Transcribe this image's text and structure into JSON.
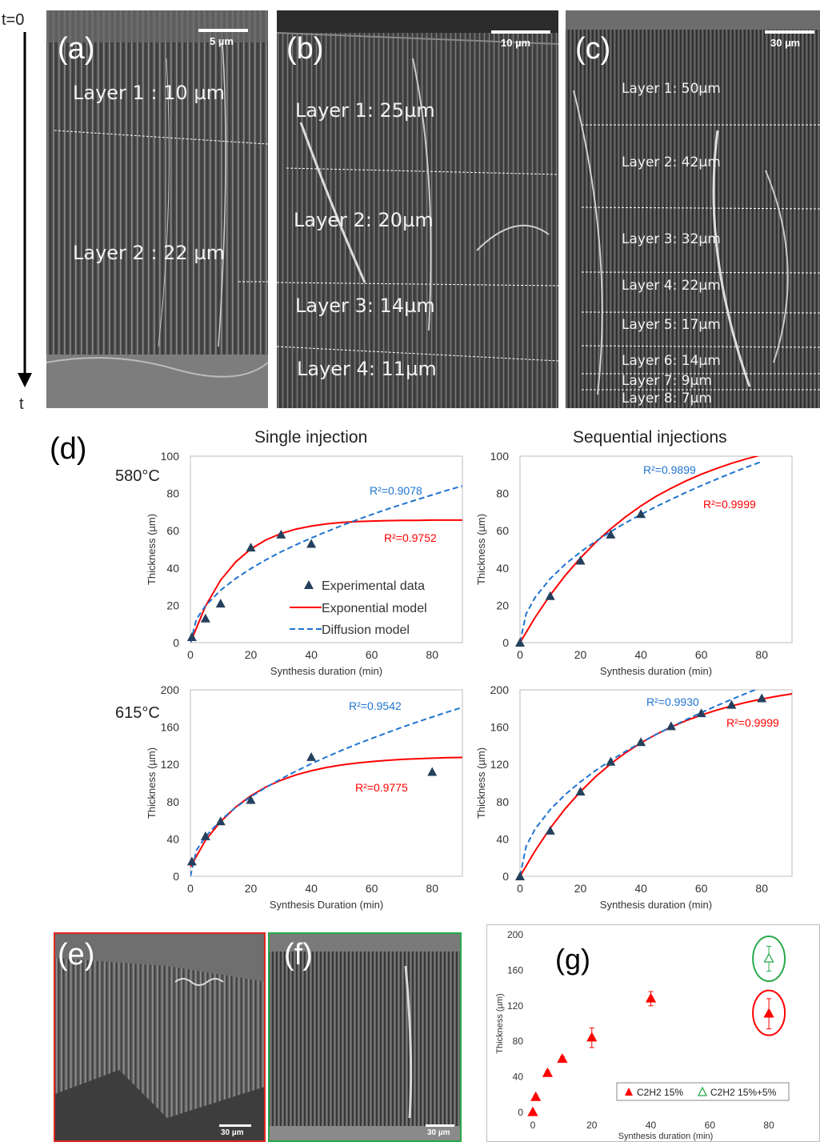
{
  "timeline": {
    "start_label": "t=0",
    "end_label": "t"
  },
  "sem_panels": [
    {
      "letter": "(a)",
      "scale": "5 µm",
      "layers": [
        "Layer 1 : 10 µm",
        "Layer 2 : 22 µm"
      ]
    },
    {
      "letter": "(b)",
      "scale": "10 µm",
      "layers": [
        "Layer 1: 25µm",
        "Layer 2: 20µm",
        "Layer 3: 14µm",
        "Layer 4: 11µm"
      ]
    },
    {
      "letter": "(c)",
      "scale": "30 µm",
      "layers": [
        "Layer 1: 50µm",
        "Layer 2: 42µm",
        "Layer 3: 32µm",
        "Layer 4: 22µm",
        "Layer 5: 17µm",
        "Layer 6: 14µm",
        "Layer 7: 9µm",
        "Layer 8: 7µm"
      ]
    }
  ],
  "panel_d": {
    "letter": "(d)",
    "col_titles": [
      "Single injection",
      "Sequential injections"
    ],
    "row_labels": [
      "580°C",
      "615°C"
    ]
  },
  "legend": {
    "experimental": "Experimental data",
    "exponential": "Exponential model",
    "diffusion": "Diffusion model"
  },
  "colors": {
    "experimental": "#24405c",
    "exponential": "#ff0000",
    "diffusion": "#1f74d0",
    "red_frame": "#e0261f",
    "green_frame": "#28a94a"
  },
  "bottom_panels": {
    "e": {
      "letter": "(e)",
      "scale": "30 µm"
    },
    "f": {
      "letter": "(f)",
      "scale": "30 µm"
    }
  },
  "chart_data": [
    {
      "id": "d-580-single",
      "type": "scatter",
      "xlabel": "Synthesis duration (min)",
      "ylabel": "Thickness (µm)",
      "xlim": [
        0,
        90
      ],
      "ylim": [
        0,
        100
      ],
      "xticks": [
        "0",
        "20",
        "40",
        "60",
        "80"
      ],
      "yticks": [
        "0",
        "20",
        "40",
        "60",
        "80",
        "100"
      ],
      "series": [
        {
          "name": "Experimental data",
          "kind": "points",
          "x": [
            0.5,
            5,
            10,
            20,
            30,
            40
          ],
          "y": [
            3,
            13,
            21,
            51,
            58,
            53
          ]
        },
        {
          "name": "Exponential model",
          "kind": "line",
          "r2": "R²=0.9752",
          "x": [
            0,
            5,
            10,
            15,
            20,
            25,
            30,
            35,
            40,
            45,
            50,
            55,
            60,
            65,
            70,
            75,
            80,
            85,
            90
          ],
          "y": [
            0,
            19.6,
            33.5,
            43.3,
            50.2,
            55.1,
            58.5,
            60.9,
            62.5,
            63.7,
            64.4,
            64.9,
            65.2,
            65.4,
            65.6,
            65.6,
            65.7,
            65.7,
            65.7
          ]
        },
        {
          "name": "Diffusion model",
          "kind": "line",
          "r2": "R²=0.9078",
          "x": [
            0,
            2,
            5,
            10,
            15,
            20,
            25,
            30,
            35,
            40,
            45,
            50,
            55,
            60,
            65,
            70,
            75,
            80,
            85,
            90
          ],
          "y": [
            0,
            12.6,
            19.8,
            28.1,
            34.4,
            39.7,
            44.4,
            48.7,
            52.5,
            56.1,
            59.5,
            62.7,
            65.8,
            68.7,
            71.5,
            74.1,
            76.7,
            79.2,
            81.7,
            84
          ]
        }
      ]
    },
    {
      "id": "d-580-sequential",
      "type": "scatter",
      "xlabel": "Synthesis duration (min)",
      "ylabel": "Thickness (µm)",
      "xlim": [
        0,
        90
      ],
      "ylim": [
        0,
        100
      ],
      "xticks": [
        "0",
        "20",
        "40",
        "60",
        "80"
      ],
      "yticks": [
        "0",
        "20",
        "40",
        "60",
        "80",
        "100"
      ],
      "series": [
        {
          "name": "Experimental data",
          "kind": "points",
          "x": [
            0,
            10,
            20,
            30,
            40
          ],
          "y": [
            0,
            25,
            44,
            58,
            69
          ]
        },
        {
          "name": "Exponential model",
          "kind": "line",
          "r2": "R²=0.9999",
          "x": [
            0,
            5,
            10,
            15,
            20,
            25,
            30,
            35,
            40,
            45,
            50,
            55,
            60,
            65,
            70,
            75,
            80
          ],
          "y": [
            0,
            13.5,
            25.5,
            36.1,
            45.4,
            53.7,
            61,
            67.5,
            73.3,
            78.4,
            82.8,
            86.8,
            90.3,
            93.4,
            96.2,
            98.6,
            100.7
          ]
        },
        {
          "name": "Diffusion model",
          "kind": "line",
          "r2": "R²=0.9899",
          "x": [
            0,
            2,
            5,
            10,
            15,
            20,
            25,
            30,
            35,
            40,
            45,
            50,
            55,
            60,
            65,
            70,
            75,
            80
          ],
          "y": [
            0,
            15.4,
            24.3,
            34.3,
            42.1,
            48.6,
            54.3,
            59.5,
            64.3,
            68.7,
            72.9,
            76.8,
            80.6,
            84.2,
            87.6,
            90.9,
            94.1,
            97.1
          ]
        }
      ]
    },
    {
      "id": "d-615-single",
      "type": "scatter",
      "xlabel": "Synthesis Duration (min)",
      "ylabel": "Thickness (µm)",
      "xlim": [
        0,
        90
      ],
      "ylim": [
        0,
        200
      ],
      "xticks": [
        "0",
        "20",
        "40",
        "60",
        "80"
      ],
      "yticks": [
        "0",
        "40",
        "80",
        "120",
        "160",
        "200"
      ],
      "series": [
        {
          "name": "Experimental data",
          "kind": "points",
          "x": [
            0.5,
            5,
            10,
            20,
            40,
            80
          ],
          "y": [
            16,
            43,
            59,
            82,
            128,
            112
          ]
        },
        {
          "name": "Exponential model",
          "kind": "line",
          "r2": "R²=0.9775",
          "x": [
            0,
            5,
            10,
            15,
            20,
            25,
            30,
            35,
            40,
            45,
            50,
            55,
            60,
            65,
            70,
            75,
            80,
            85,
            90
          ],
          "y": [
            10,
            38.7,
            58.7,
            74.3,
            86.4,
            95.8,
            103.1,
            108.8,
            113.2,
            116.7,
            119.4,
            121.5,
            123.1,
            124.4,
            125.4,
            126.1,
            126.7,
            127.2,
            127.5
          ]
        },
        {
          "name": "Diffusion model",
          "kind": "line",
          "r2": "R²=0.9542",
          "x": [
            0,
            2,
            5,
            10,
            15,
            20,
            25,
            30,
            35,
            40,
            45,
            50,
            55,
            60,
            65,
            70,
            75,
            80,
            85,
            90
          ],
          "y": [
            0,
            28,
            42.6,
            60.3,
            73.9,
            85.3,
            95.4,
            104.5,
            112.9,
            120.7,
            128,
            135,
            141.6,
            147.9,
            153.9,
            159.8,
            165.4,
            170.8,
            176.1,
            181.2
          ]
        }
      ]
    },
    {
      "id": "d-615-sequential",
      "type": "scatter",
      "xlabel": "Synthesis duration (min)",
      "ylabel": "Thickness (µm)",
      "xlim": [
        0,
        90
      ],
      "ylim": [
        0,
        200
      ],
      "xticks": [
        "0",
        "20",
        "40",
        "60",
        "80"
      ],
      "yticks": [
        "0",
        "40",
        "80",
        "120",
        "160",
        "200"
      ],
      "series": [
        {
          "name": "Experimental data",
          "kind": "points",
          "x": [
            0,
            10,
            20,
            30,
            40,
            50,
            60,
            70,
            80
          ],
          "y": [
            0,
            49,
            91,
            123,
            144,
            161,
            175,
            184,
            191
          ]
        },
        {
          "name": "Exponential model",
          "kind": "line",
          "r2": "R²=0.9999",
          "x": [
            0,
            5,
            10,
            15,
            20,
            25,
            30,
            35,
            40,
            45,
            50,
            55,
            60,
            65,
            70,
            75,
            80,
            85,
            90
          ],
          "y": [
            0,
            27.4,
            51.7,
            72.7,
            90.9,
            106.8,
            120.6,
            132.6,
            143.1,
            152.2,
            160.1,
            167,
            173,
            178.2,
            182.7,
            186.7,
            190.1,
            193.1,
            195.7
          ]
        },
        {
          "name": "Diffusion model",
          "kind": "line",
          "r2": "R²=0.9930",
          "x": [
            0,
            2,
            5,
            10,
            15,
            20,
            25,
            30,
            35,
            40,
            45,
            50,
            55,
            60,
            65,
            70,
            75,
            80,
            85
          ],
          "y": [
            0,
            32.1,
            50.7,
            71.7,
            87.8,
            101.4,
            113.4,
            124.2,
            134.2,
            143.4,
            152.1,
            160.3,
            168.1,
            175.6,
            182.8,
            189.7,
            196.4,
            202.8,
            209
          ]
        }
      ]
    },
    {
      "id": "g",
      "type": "scatter",
      "letter": "(g)",
      "xlabel": "Synthesis duration (min)",
      "ylabel": "Thickness (µm)",
      "xlim": [
        0,
        90
      ],
      "ylim": [
        0,
        200
      ],
      "xticks": [
        "0",
        "20",
        "40",
        "60",
        "80"
      ],
      "yticks": [
        "0",
        "40",
        "80",
        "120",
        "160",
        "200"
      ],
      "series": [
        {
          "name": "C2H2 15%",
          "kind": "filled-triangles",
          "x": [
            0,
            1,
            5,
            10,
            20,
            40,
            80
          ],
          "y": [
            0,
            17,
            44,
            60,
            84,
            128,
            111
          ],
          "err": [
            0,
            2,
            3,
            3,
            11,
            8,
            17
          ]
        },
        {
          "name": "C2H2 15%+5%",
          "kind": "open-triangles",
          "x": [
            80
          ],
          "y": [
            173
          ],
          "err": [
            14
          ]
        }
      ]
    }
  ]
}
